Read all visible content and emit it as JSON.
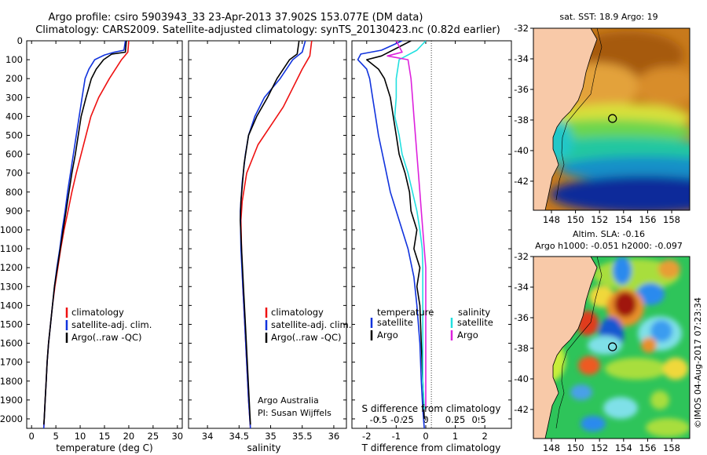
{
  "header": {
    "title_line1": "Argo profile: csiro 5903943_33 23-Apr-2013 37.902S 153.077E (DM data)",
    "title_line2": "Climatology: CARS2009. Satellite-adjusted climatology: synTS_20130423.nc (0.82d earlier)"
  },
  "colors": {
    "climatology": "#ee1111",
    "satellite": "#1133dd",
    "argo": "#000000",
    "salinity_satellite": "#22e0e0",
    "salinity_argo": "#dd22dd",
    "land": "#f8c9a8"
  },
  "chart_data": [
    {
      "id": "temperature",
      "type": "line",
      "xlabel": "temperature (deg C)",
      "ylabel": "",
      "xlim": [
        -1,
        31
      ],
      "ylim": [
        2050,
        0
      ],
      "xticks": [
        0,
        5,
        10,
        15,
        20,
        25,
        30
      ],
      "yticks": [
        0,
        100,
        200,
        300,
        400,
        500,
        600,
        700,
        800,
        900,
        1000,
        1100,
        1200,
        1300,
        1400,
        1500,
        1600,
        1700,
        1800,
        1900,
        2000
      ],
      "legend": [
        "climatology",
        "satellite-adj. clim.",
        "Argo(..raw -QC)"
      ],
      "series": [
        {
          "name": "climatology",
          "color": "#ee1111",
          "points": [
            [
              20,
              0
            ],
            [
              19.8,
              60
            ],
            [
              18.5,
              100
            ],
            [
              16,
              200
            ],
            [
              13.8,
              300
            ],
            [
              12.2,
              400
            ],
            [
              11.2,
              500
            ],
            [
              10.2,
              600
            ],
            [
              9.2,
              700
            ],
            [
              8.3,
              800
            ],
            [
              7.5,
              900
            ],
            [
              6.7,
              1000
            ],
            [
              6,
              1100
            ],
            [
              5.4,
              1200
            ],
            [
              4.8,
              1300
            ],
            [
              4.3,
              1400
            ],
            [
              3.9,
              1500
            ],
            [
              3.5,
              1600
            ],
            [
              3.2,
              1700
            ],
            [
              3,
              1800
            ],
            [
              2.8,
              1900
            ],
            [
              2.6,
              2000
            ],
            [
              2.5,
              2050
            ]
          ]
        },
        {
          "name": "satellite-adj. clim.",
          "color": "#1133dd",
          "points": [
            [
              19.3,
              0
            ],
            [
              19,
              50
            ],
            [
              17,
              60
            ],
            [
              15,
              75
            ],
            [
              13,
              100
            ],
            [
              11.8,
              150
            ],
            [
              11,
              200
            ],
            [
              10.4,
              300
            ],
            [
              9.8,
              400
            ],
            [
              9.2,
              500
            ],
            [
              8.6,
              600
            ],
            [
              8,
              700
            ],
            [
              7.4,
              800
            ],
            [
              6.9,
              900
            ],
            [
              6.3,
              1000
            ],
            [
              5.8,
              1100
            ],
            [
              5.2,
              1200
            ],
            [
              4.7,
              1300
            ],
            [
              4.3,
              1400
            ],
            [
              3.9,
              1500
            ],
            [
              3.5,
              1600
            ],
            [
              3.2,
              1700
            ],
            [
              3,
              1800
            ],
            [
              2.8,
              1900
            ],
            [
              2.6,
              2000
            ],
            [
              2.5,
              2050
            ]
          ]
        },
        {
          "name": "Argo(..raw -QC)",
          "color": "#000000",
          "points": [
            [
              19.5,
              0
            ],
            [
              19.3,
              60
            ],
            [
              16.5,
              70
            ],
            [
              14.8,
              100
            ],
            [
              13.3,
              150
            ],
            [
              12.3,
              200
            ],
            [
              11.2,
              300
            ],
            [
              10.2,
              400
            ],
            [
              9.6,
              500
            ],
            [
              9,
              600
            ],
            [
              8.3,
              700
            ],
            [
              7.7,
              800
            ],
            [
              7.1,
              900
            ],
            [
              6.5,
              1000
            ],
            [
              5.9,
              1100
            ],
            [
              5.3,
              1200
            ],
            [
              4.7,
              1300
            ],
            [
              4.3,
              1400
            ],
            [
              3.9,
              1500
            ],
            [
              3.5,
              1600
            ],
            [
              3.2,
              1700
            ],
            [
              3,
              1800
            ],
            [
              2.8,
              1900
            ],
            [
              2.6,
              2000
            ],
            [
              2.5,
              2030
            ]
          ]
        }
      ]
    },
    {
      "id": "salinity",
      "type": "line",
      "xlabel": "salinity",
      "xlim": [
        33.7,
        36.2
      ],
      "ylim": [
        2050,
        0
      ],
      "xticks": [
        34,
        34.5,
        35,
        35.5,
        36
      ],
      "legend": [
        "climatology",
        "satellite-adj. clim.",
        "Argo(..raw -QC)"
      ],
      "annotation": [
        "Argo Australia",
        "PI: Susan Wijffels"
      ],
      "series": [
        {
          "name": "climatology",
          "color": "#ee1111",
          "points": [
            [
              35.65,
              0
            ],
            [
              35.62,
              80
            ],
            [
              35.5,
              150
            ],
            [
              35.35,
              250
            ],
            [
              35.2,
              350
            ],
            [
              35,
              450
            ],
            [
              34.8,
              550
            ],
            [
              34.62,
              700
            ],
            [
              34.55,
              850
            ],
            [
              34.53,
              950
            ],
            [
              34.54,
              1100
            ],
            [
              34.56,
              1300
            ],
            [
              34.59,
              1500
            ],
            [
              34.62,
              1700
            ],
            [
              34.65,
              1900
            ],
            [
              34.68,
              2050
            ]
          ]
        },
        {
          "name": "satellite-adj. clim.",
          "color": "#1133dd",
          "points": [
            [
              35.55,
              0
            ],
            [
              35.5,
              60
            ],
            [
              35.35,
              100
            ],
            [
              35.15,
              200
            ],
            [
              34.9,
              300
            ],
            [
              34.75,
              400
            ],
            [
              34.65,
              500
            ],
            [
              34.6,
              600
            ],
            [
              34.55,
              750
            ],
            [
              34.52,
              900
            ],
            [
              34.53,
              1100
            ],
            [
              34.56,
              1300
            ],
            [
              34.59,
              1500
            ],
            [
              34.62,
              1700
            ],
            [
              34.65,
              1900
            ],
            [
              34.68,
              2050
            ]
          ]
        },
        {
          "name": "Argo(..raw -QC)",
          "color": "#000000",
          "points": [
            [
              35.45,
              0
            ],
            [
              35.42,
              70
            ],
            [
              35.3,
              100
            ],
            [
              35.1,
              200
            ],
            [
              34.95,
              300
            ],
            [
              34.78,
              400
            ],
            [
              34.65,
              500
            ],
            [
              34.58,
              650
            ],
            [
              34.53,
              850
            ],
            [
              34.52,
              950
            ],
            [
              34.54,
              1100
            ],
            [
              34.57,
              1300
            ],
            [
              34.6,
              1500
            ],
            [
              34.63,
              1700
            ],
            [
              34.66,
              1900
            ],
            [
              34.68,
              2030
            ]
          ]
        }
      ]
    },
    {
      "id": "difference",
      "type": "line",
      "xlabel": "T difference from climatology",
      "xlabel_top": "S difference from climatology",
      "xlim": [
        -2.5,
        2.9
      ],
      "ylim": [
        2050,
        0
      ],
      "xticks": [
        -2,
        -1,
        0,
        1,
        2
      ],
      "xticks_salinity": [
        "-0.5",
        "-0.25",
        "0",
        "0.25",
        "0.5"
      ],
      "legend_headers": [
        "temperature",
        "salinity"
      ],
      "legend": [
        "satellite",
        "Argo",
        "satellite",
        "Argo"
      ],
      "series": [
        {
          "name": "temperature satellite",
          "color": "#1133dd",
          "points": [
            [
              -0.8,
              0
            ],
            [
              -1.5,
              50
            ],
            [
              -2.2,
              70
            ],
            [
              -2.3,
              100
            ],
            [
              -2,
              150
            ],
            [
              -1.9,
              200
            ],
            [
              -1.8,
              300
            ],
            [
              -1.7,
              400
            ],
            [
              -1.6,
              500
            ],
            [
              -1.4,
              650
            ],
            [
              -1.2,
              800
            ],
            [
              -0.9,
              950
            ],
            [
              -0.6,
              1100
            ],
            [
              -0.4,
              1250
            ],
            [
              -0.3,
              1400
            ],
            [
              -0.2,
              1600
            ],
            [
              -0.15,
              1800
            ],
            [
              -0.1,
              1950
            ],
            [
              -0.05,
              2050
            ]
          ]
        },
        {
          "name": "temperature Argo",
          "color": "#000000",
          "points": [
            [
              -0.5,
              0
            ],
            [
              -1.5,
              80
            ],
            [
              -2,
              100
            ],
            [
              -1.6,
              150
            ],
            [
              -1.4,
              200
            ],
            [
              -1.2,
              300
            ],
            [
              -1.1,
              400
            ],
            [
              -1,
              500
            ],
            [
              -0.9,
              600
            ],
            [
              -0.7,
              700
            ],
            [
              -0.55,
              800
            ],
            [
              -0.5,
              900
            ],
            [
              -0.3,
              1000
            ],
            [
              -0.4,
              1100
            ],
            [
              -0.2,
              1200
            ],
            [
              -0.3,
              1300
            ],
            [
              -0.2,
              1400
            ],
            [
              -0.15,
              1600
            ],
            [
              -0.1,
              1800
            ],
            [
              -0.05,
              2000
            ]
          ]
        },
        {
          "name": "salinity satellite",
          "color": "#22e0e0",
          "points": [
            [
              0,
              0
            ],
            [
              -0.3,
              50
            ],
            [
              -0.9,
              100
            ],
            [
              -1,
              200
            ],
            [
              -1,
              300
            ],
            [
              -1.05,
              400
            ],
            [
              -0.9,
              500
            ],
            [
              -0.8,
              600
            ],
            [
              -0.6,
              700
            ],
            [
              -0.45,
              800
            ],
            [
              -0.3,
              900
            ],
            [
              -0.2,
              1000
            ],
            [
              -0.12,
              1100
            ],
            [
              -0.1,
              1200
            ],
            [
              -0.1,
              1300
            ],
            [
              -0.1,
              1400
            ],
            [
              -0.1,
              1600
            ],
            [
              -0.1,
              1800
            ],
            [
              -0.05,
              1950
            ]
          ]
        },
        {
          "name": "salinity Argo",
          "color": "#dd22dd",
          "points": [
            [
              -1,
              0
            ],
            [
              -0.8,
              60
            ],
            [
              -1.3,
              80
            ],
            [
              -0.6,
              100
            ],
            [
              -0.5,
              200
            ],
            [
              -0.45,
              300
            ],
            [
              -0.4,
              400
            ],
            [
              -0.35,
              500
            ],
            [
              -0.3,
              600
            ],
            [
              -0.25,
              700
            ],
            [
              -0.2,
              800
            ],
            [
              -0.15,
              900
            ],
            [
              -0.1,
              1000
            ],
            [
              -0.05,
              1100
            ],
            [
              0,
              1200
            ],
            [
              0,
              1300
            ],
            [
              0,
              1400
            ],
            [
              0,
              1600
            ],
            [
              0,
              1800
            ],
            [
              0,
              1950
            ]
          ]
        }
      ]
    },
    {
      "id": "sst_map",
      "type": "heatmap",
      "title": "sat. SST: 18.9 Argo: 19",
      "xlim": [
        146.5,
        159.5
      ],
      "ylim": [
        -43.9,
        -32
      ],
      "xticks": [
        148,
        150,
        152,
        154,
        156,
        158
      ],
      "yticks": [
        -32,
        -34,
        -36,
        -38,
        -40,
        -42
      ],
      "profile_lon": 153.077,
      "profile_lat": -37.902
    },
    {
      "id": "sla_map",
      "type": "heatmap",
      "title_line1": "Altim. SLA: -0.16",
      "title_line2": "Argo h1000: -0.051 h2000: -0.097",
      "xlim": [
        146.5,
        159.5
      ],
      "ylim": [
        -43.9,
        -32
      ],
      "xticks": [
        148,
        150,
        152,
        154,
        156,
        158
      ],
      "yticks": [
        -32,
        -34,
        -36,
        -38,
        -40,
        -42
      ],
      "profile_lon": 153.077,
      "profile_lat": -37.902
    }
  ],
  "footer": {
    "credit": "©IMOS 04-Aug-2017 07:23:34"
  }
}
